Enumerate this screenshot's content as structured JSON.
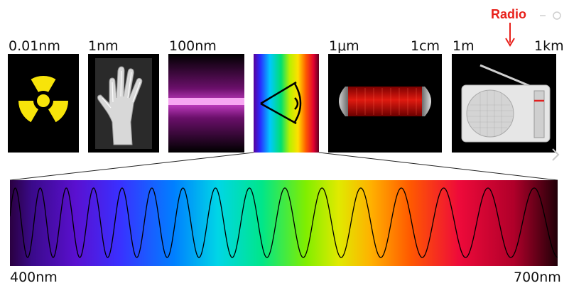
{
  "scale_labels": {
    "gamma": "0.01nm",
    "xray": "1nm",
    "uv": "100nm",
    "ir": "1μm",
    "microwave": "1cm",
    "radio_start": "1m",
    "radio_end": "1km"
  },
  "visible_range": {
    "start": "400nm",
    "end": "700nm"
  },
  "annotation": {
    "text": "Radio",
    "color": "#e8201a"
  },
  "icons": {
    "gamma": "radiation-hazard-icon",
    "xray": "hand-xray-icon",
    "uv": "ultraviolet-glow-icon",
    "visible": "eye-icon",
    "microwave": "microwave-cavity-icon",
    "radio": "radio-receiver-icon"
  }
}
